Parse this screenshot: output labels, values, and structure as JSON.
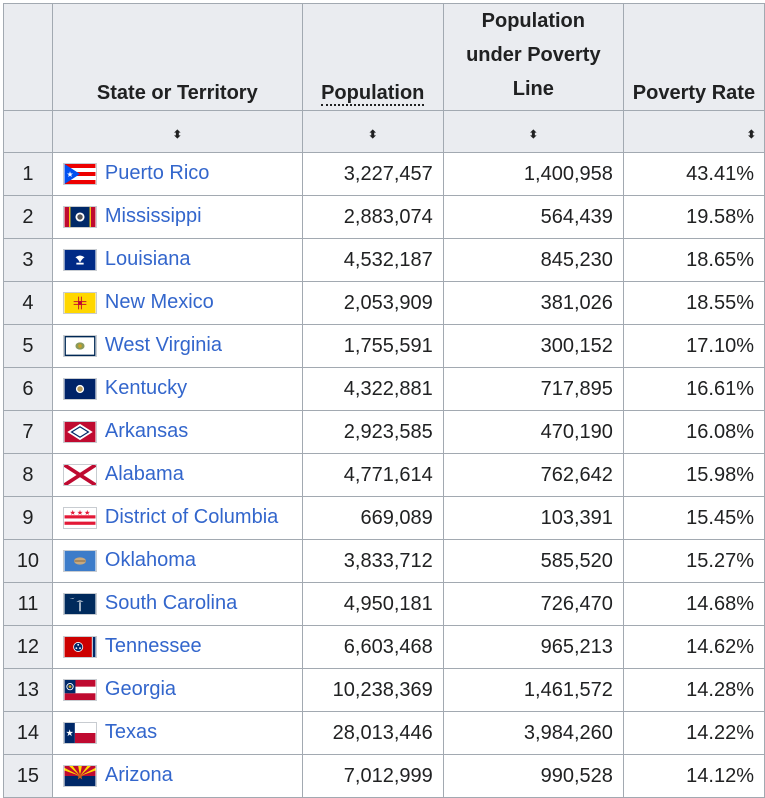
{
  "headers": {
    "state": "State or Territory",
    "population": "Population",
    "poverty_population": "Population under Poverty Line",
    "poverty_rate": "Poverty Rate",
    "sort_glyph": "⬍"
  },
  "rows": [
    {
      "rank": "1",
      "name": "Puerto Rico",
      "population": "3,227,457",
      "poverty_population": "1,400,958",
      "poverty_rate": "43.41%",
      "flag": "puerto-rico-flag-icon"
    },
    {
      "rank": "2",
      "name": "Mississippi",
      "population": "2,883,074",
      "poverty_population": "564,439",
      "poverty_rate": "19.58%",
      "flag": "mississippi-flag-icon"
    },
    {
      "rank": "3",
      "name": "Louisiana",
      "population": "4,532,187",
      "poverty_population": "845,230",
      "poverty_rate": "18.65%",
      "flag": "louisiana-flag-icon"
    },
    {
      "rank": "4",
      "name": "New Mexico",
      "population": "2,053,909",
      "poverty_population": "381,026",
      "poverty_rate": "18.55%",
      "flag": "new-mexico-flag-icon"
    },
    {
      "rank": "5",
      "name": "West Virginia",
      "population": "1,755,591",
      "poverty_population": "300,152",
      "poverty_rate": "17.10%",
      "flag": "west-virginia-flag-icon"
    },
    {
      "rank": "6",
      "name": "Kentucky",
      "population": "4,322,881",
      "poverty_population": "717,895",
      "poverty_rate": "16.61%",
      "flag": "kentucky-flag-icon"
    },
    {
      "rank": "7",
      "name": "Arkansas",
      "population": "2,923,585",
      "poverty_population": "470,190",
      "poverty_rate": "16.08%",
      "flag": "arkansas-flag-icon"
    },
    {
      "rank": "8",
      "name": "Alabama",
      "population": "4,771,614",
      "poverty_population": "762,642",
      "poverty_rate": "15.98%",
      "flag": "alabama-flag-icon"
    },
    {
      "rank": "9",
      "name": "District of Columbia",
      "population": "669,089",
      "poverty_population": "103,391",
      "poverty_rate": "15.45%",
      "flag": "district-of-columbia-flag-icon"
    },
    {
      "rank": "10",
      "name": "Oklahoma",
      "population": "3,833,712",
      "poverty_population": "585,520",
      "poverty_rate": "15.27%",
      "flag": "oklahoma-flag-icon"
    },
    {
      "rank": "11",
      "name": "South Carolina",
      "population": "4,950,181",
      "poverty_population": "726,470",
      "poverty_rate": "14.68%",
      "flag": "south-carolina-flag-icon"
    },
    {
      "rank": "12",
      "name": "Tennessee",
      "population": "6,603,468",
      "poverty_population": "965,213",
      "poverty_rate": "14.62%",
      "flag": "tennessee-flag-icon"
    },
    {
      "rank": "13",
      "name": "Georgia",
      "population": "10,238,369",
      "poverty_population": "1,461,572",
      "poverty_rate": "14.28%",
      "flag": "georgia-flag-icon"
    },
    {
      "rank": "14",
      "name": "Texas",
      "population": "28,013,446",
      "poverty_population": "3,984,260",
      "poverty_rate": "14.22%",
      "flag": "texas-flag-icon"
    },
    {
      "rank": "15",
      "name": "Arizona",
      "population": "7,012,999",
      "poverty_population": "990,528",
      "poverty_rate": "14.12%",
      "flag": "arizona-flag-icon"
    }
  ],
  "colors": {
    "link": "#3366cc",
    "header_bg": "#eaecf0",
    "border": "#a2a9b1"
  }
}
